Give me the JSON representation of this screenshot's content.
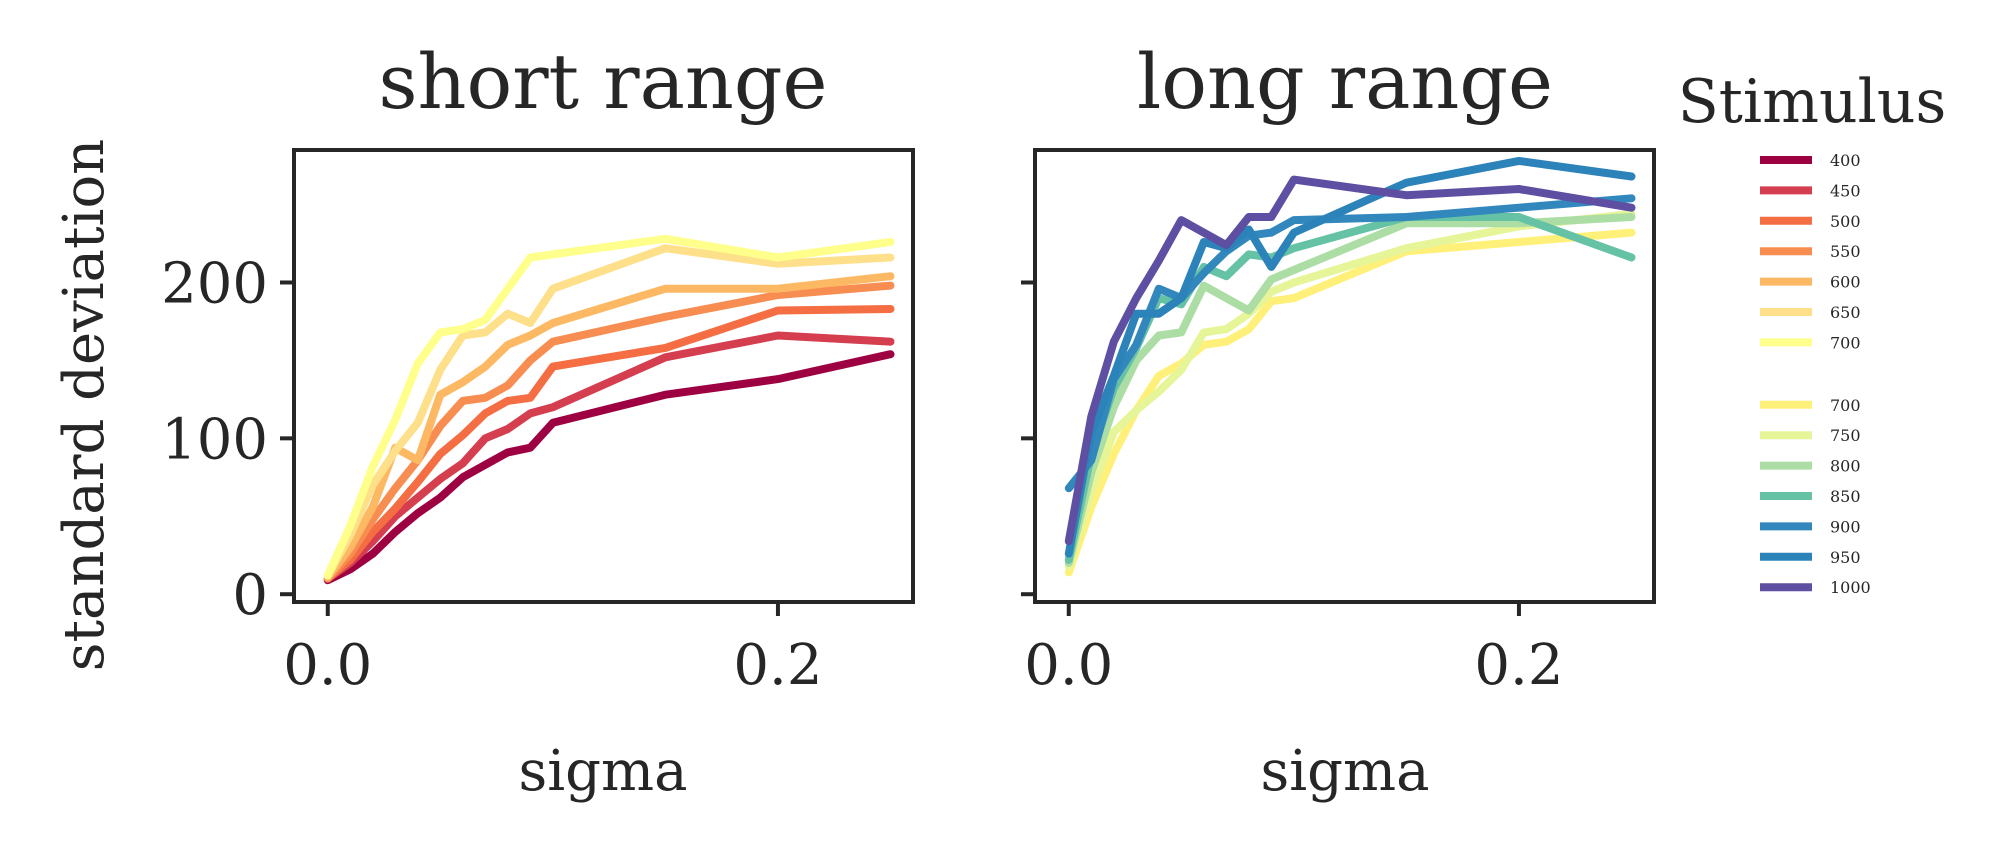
{
  "chart_data": [
    {
      "type": "line",
      "title": "short range",
      "xlabel": "sigma",
      "ylabel": "standard deviation",
      "xlim": [
        -0.015,
        0.26
      ],
      "ylim": [
        -5,
        285
      ],
      "xticks": [
        0.0,
        0.2
      ],
      "xtick_labels": [
        "0.0",
        "0.2"
      ],
      "yticks": [
        0,
        100,
        200
      ],
      "ytick_labels": [
        "0",
        "100",
        "200"
      ],
      "grid": false,
      "x": [
        0.0,
        0.01,
        0.02,
        0.03,
        0.04,
        0.05,
        0.06,
        0.07,
        0.08,
        0.09,
        0.1,
        0.15,
        0.2,
        0.25
      ],
      "series": [
        {
          "name": "400",
          "color": "#9e0142",
          "values": [
            9,
            16,
            26,
            40,
            52,
            62,
            75,
            83,
            91,
            94,
            110,
            128,
            138,
            154
          ]
        },
        {
          "name": "450",
          "color": "#d53e4f",
          "values": [
            10,
            20,
            34,
            50,
            62,
            74,
            84,
            100,
            106,
            116,
            120,
            152,
            166,
            162
          ]
        },
        {
          "name": "500",
          "color": "#f46d43",
          "values": [
            10,
            22,
            40,
            55,
            72,
            90,
            102,
            116,
            124,
            126,
            146,
            158,
            182,
            183
          ]
        },
        {
          "name": "550",
          "color": "#f88d52",
          "values": [
            10,
            26,
            48,
            68,
            86,
            108,
            124,
            126,
            134,
            150,
            162,
            178,
            192,
            198
          ]
        },
        {
          "name": "600",
          "color": "#fdb863",
          "values": [
            11,
            30,
            56,
            94,
            86,
            128,
            136,
            146,
            160,
            166,
            174,
            196,
            196,
            204
          ]
        },
        {
          "name": "650",
          "color": "#fee08b",
          "values": [
            12,
            38,
            70,
            92,
            110,
            144,
            166,
            168,
            180,
            174,
            196,
            222,
            212,
            216
          ]
        },
        {
          "name": "700",
          "color": "#ffff8c",
          "values": [
            12,
            44,
            82,
            112,
            148,
            168,
            170,
            176,
            196,
            216,
            218,
            228,
            216,
            226
          ]
        }
      ]
    },
    {
      "type": "line",
      "title": "long range",
      "xlabel": "sigma",
      "xlim": [
        -0.015,
        0.26
      ],
      "ylim": [
        -5,
        285
      ],
      "xticks": [
        0.0,
        0.2
      ],
      "xtick_labels": [
        "0.0",
        "0.2"
      ],
      "yticks": [
        0,
        100,
        200
      ],
      "ytick_labels": [
        "",
        "",
        ""
      ],
      "grid": false,
      "x": [
        0.0,
        0.01,
        0.02,
        0.03,
        0.04,
        0.05,
        0.06,
        0.07,
        0.08,
        0.09,
        0.1,
        0.15,
        0.2,
        0.25
      ],
      "series": [
        {
          "name": "700",
          "color": "#fff07a",
          "values": [
            14,
            56,
            90,
            118,
            140,
            148,
            160,
            162,
            170,
            188,
            190,
            220,
            226,
            232
          ]
        },
        {
          "name": "750",
          "color": "#e6f598",
          "values": [
            18,
            66,
            104,
            118,
            130,
            144,
            168,
            170,
            180,
            194,
            200,
            222,
            236,
            244
          ]
        },
        {
          "name": "800",
          "color": "#abdda4",
          "values": [
            20,
            78,
            120,
            150,
            166,
            168,
            198,
            190,
            182,
            202,
            208,
            238,
            238,
            242
          ]
        },
        {
          "name": "850",
          "color": "#66c2a5",
          "values": [
            22,
            90,
            132,
            158,
            190,
            186,
            210,
            204,
            218,
            216,
            222,
            242,
            242,
            216
          ]
        },
        {
          "name": "900",
          "color": "#3288bd",
          "values": [
            68,
            86,
            138,
            160,
            196,
            190,
            206,
            220,
            230,
            232,
            240,
            242,
            248,
            254
          ]
        },
        {
          "name": "950",
          "color": "#2b83ba",
          "values": [
            26,
            104,
            140,
            180,
            180,
            190,
            226,
            222,
            234,
            210,
            232,
            264,
            278,
            268
          ]
        },
        {
          "name": "1000",
          "color": "#5e4fa2",
          "values": [
            34,
            114,
            162,
            190,
            214,
            240,
            232,
            224,
            242,
            242,
            266,
            256,
            260,
            248
          ]
        }
      ]
    }
  ],
  "legend": {
    "title": "Stimulus",
    "placement": "right",
    "items": [
      {
        "label": "400",
        "color": "#9e0142"
      },
      {
        "label": "450",
        "color": "#d53e4f"
      },
      {
        "label": "500",
        "color": "#f46d43"
      },
      {
        "label": "550",
        "color": "#f88d52"
      },
      {
        "label": "600",
        "color": "#fdb863"
      },
      {
        "label": "650",
        "color": "#fee08b"
      },
      {
        "label": "700",
        "color": "#ffff8c"
      },
      {
        "label": "700",
        "color": "#fff07a"
      },
      {
        "label": "750",
        "color": "#e6f598"
      },
      {
        "label": "800",
        "color": "#abdda4"
      },
      {
        "label": "850",
        "color": "#66c2a5"
      },
      {
        "label": "900",
        "color": "#3288bd"
      },
      {
        "label": "950",
        "color": "#2b83ba"
      },
      {
        "label": "1000",
        "color": "#5e4fa2"
      }
    ]
  }
}
